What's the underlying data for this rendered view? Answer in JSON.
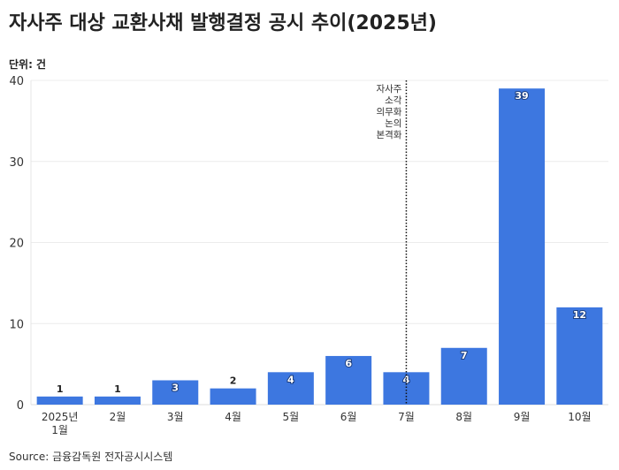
{
  "chart_data": {
    "type": "bar",
    "title": "자사주 대상 교환사채 발행결정 공시 추이(2025년)",
    "unit_label": "단위: 건",
    "source": "Source: 금융감독원 전자공시시스템",
    "categories": [
      [
        "2025년",
        "1월"
      ],
      [
        "2월"
      ],
      [
        "3월"
      ],
      [
        "4월"
      ],
      [
        "5월"
      ],
      [
        "6월"
      ],
      [
        "7월"
      ],
      [
        "8월"
      ],
      [
        "9월"
      ],
      [
        "10월"
      ]
    ],
    "values": [
      1,
      1,
      3,
      2,
      4,
      6,
      4,
      7,
      39,
      12
    ],
    "ylim": [
      0,
      40
    ],
    "yticks": [
      0,
      10,
      20,
      30,
      40
    ],
    "grid": true,
    "bar_color": "#3d77e0",
    "annotation": {
      "category_index": 6,
      "lines": [
        "자사주",
        "소각",
        "의무화",
        "논의",
        "본격화"
      ],
      "style": "dotted vertical line"
    }
  }
}
